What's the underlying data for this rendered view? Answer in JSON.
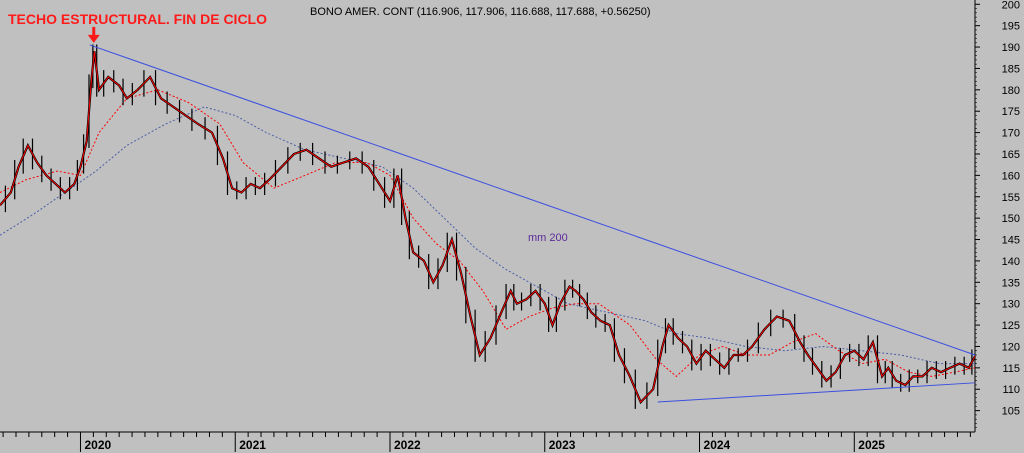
{
  "chart_data": {
    "type": "line",
    "instrument_quote": "BONO AMER. CONT (116.906, 117.906, 116.688, 117.688, +0.56250)",
    "annotation_title": "TECHO ESTRUCTURAL. FIN DE CICLO",
    "ma_label": "mm 200",
    "ylim": [
      100,
      201
    ],
    "y_ticks": [
      105,
      110,
      115,
      120,
      125,
      130,
      135,
      140,
      145,
      150,
      155,
      160,
      165,
      170,
      175,
      180,
      185,
      190,
      195,
      200
    ],
    "x_range": [
      2019.48,
      2025.78
    ],
    "x_year_labels": [
      "2020",
      "2021",
      "2022",
      "2023",
      "2024",
      "2025"
    ],
    "x_year_positions": [
      2020,
      2021,
      2022,
      2023,
      2024,
      2025
    ],
    "colors": {
      "background": "#c0c0c0",
      "price": "#000000",
      "ma_short": "#ff0000",
      "ma_200": "#4b5fa8",
      "trendline": "#3a4fe0",
      "annotation": "#ff1a1a"
    },
    "price": {
      "x": [
        2019.48,
        2019.55,
        2019.6,
        2019.66,
        2019.72,
        2019.78,
        2019.84,
        2019.9,
        2019.96,
        2020.0,
        2020.04,
        2020.07,
        2020.09,
        2020.12,
        2020.18,
        2020.25,
        2020.3,
        2020.37,
        2020.45,
        2020.52,
        2020.6,
        2020.68,
        2020.76,
        2020.85,
        2020.92,
        2020.98,
        2021.04,
        2021.1,
        2021.16,
        2021.22,
        2021.3,
        2021.38,
        2021.46,
        2021.54,
        2021.62,
        2021.7,
        2021.78,
        2021.86,
        2021.93,
        2022.0,
        2022.05,
        2022.1,
        2022.15,
        2022.22,
        2022.28,
        2022.34,
        2022.4,
        2022.46,
        2022.52,
        2022.58,
        2022.65,
        2022.72,
        2022.78,
        2022.82,
        2022.88,
        2022.94,
        2023.0,
        2023.05,
        2023.1,
        2023.16,
        2023.2,
        2023.25,
        2023.3,
        2023.36,
        2023.42,
        2023.48,
        2023.55,
        2023.62,
        2023.7,
        2023.76,
        2023.8,
        2023.86,
        2023.92,
        2023.98,
        2024.04,
        2024.1,
        2024.16,
        2024.22,
        2024.28,
        2024.34,
        2024.42,
        2024.5,
        2024.58,
        2024.65,
        2024.7,
        2024.76,
        2024.82,
        2024.88,
        2024.94,
        2025.0,
        2025.06,
        2025.12,
        2025.18,
        2025.22,
        2025.27,
        2025.33,
        2025.38,
        2025.44,
        2025.5,
        2025.56,
        2025.62,
        2025.68,
        2025.74,
        2025.78
      ],
      "y": [
        153,
        156,
        162,
        167,
        163,
        160,
        158,
        156,
        158,
        162,
        168,
        182,
        189,
        180,
        183,
        181,
        178,
        180,
        183,
        178,
        176,
        174,
        172,
        170,
        164,
        157,
        156,
        158,
        157,
        159,
        162,
        165,
        166,
        164,
        162,
        163,
        164,
        162,
        158,
        154,
        160,
        150,
        142,
        140,
        135,
        139,
        145,
        137,
        127,
        118,
        122,
        128,
        133,
        130,
        131,
        133,
        130,
        125,
        130,
        134,
        133,
        131,
        128,
        126,
        125,
        118,
        113,
        107,
        110,
        120,
        125,
        122,
        120,
        116,
        119,
        117,
        115,
        118,
        118,
        120,
        124,
        127,
        126,
        121,
        118,
        115,
        112,
        114,
        118,
        119,
        117,
        121,
        113,
        115,
        112,
        111,
        113,
        113,
        115,
        114,
        115,
        116,
        115,
        117.7
      ]
    },
    "ma_short": {
      "x": [
        2019.48,
        2019.65,
        2019.85,
        2020.0,
        2020.12,
        2020.3,
        2020.5,
        2020.7,
        2020.9,
        2021.05,
        2021.25,
        2021.45,
        2021.65,
        2021.85,
        2022.0,
        2022.15,
        2022.3,
        2022.45,
        2022.6,
        2022.75,
        2022.9,
        2023.05,
        2023.2,
        2023.35,
        2023.55,
        2023.72,
        2023.85,
        2024.0,
        2024.15,
        2024.3,
        2024.45,
        2024.6,
        2024.75,
        2024.9,
        2025.05,
        2025.2,
        2025.35,
        2025.5,
        2025.65,
        2025.78
      ],
      "y": [
        156,
        159,
        161,
        160,
        170,
        178,
        180,
        177,
        172,
        163,
        157,
        160,
        163,
        163,
        160,
        150,
        144,
        140,
        133,
        124,
        127,
        129,
        130,
        130,
        125,
        117,
        113,
        118,
        120,
        118,
        118,
        121,
        123,
        119,
        116,
        117,
        114,
        113,
        114,
        115
      ]
    },
    "ma_200": {
      "x": [
        2019.48,
        2019.7,
        2019.9,
        2020.1,
        2020.3,
        2020.55,
        2020.8,
        2021.0,
        2021.2,
        2021.45,
        2021.7,
        2021.95,
        2022.15,
        2022.35,
        2022.55,
        2022.75,
        2022.95,
        2023.15,
        2023.4,
        2023.65,
        2023.85,
        2024.05,
        2024.3,
        2024.55,
        2024.8,
        2025.05,
        2025.3,
        2025.55,
        2025.78
      ],
      "y": [
        146,
        151,
        156,
        161,
        167,
        172,
        176,
        174,
        170,
        166,
        164,
        162,
        157,
        150,
        143,
        138,
        134,
        130,
        128,
        126,
        123,
        122,
        120,
        119,
        120,
        119,
        118,
        116,
        116
      ]
    },
    "trendlines": [
      {
        "x": [
          2020.06,
          2025.78
        ],
        "y": [
          190.5,
          118
        ]
      },
      {
        "x": [
          2023.73,
          2025.78
        ],
        "y": [
          107,
          111.5
        ]
      }
    ]
  }
}
